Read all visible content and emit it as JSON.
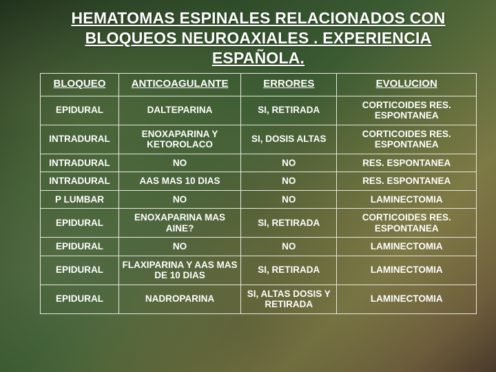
{
  "title": "HEMATOMAS ESPINALES RELACIONADOS CON BLOQUEOS NEUROAXIALES .  EXPERIENCIA ESPAÑOLA.",
  "table": {
    "columns": [
      "BLOQUEO",
      "ANTICOAGULANTE",
      "ERRORES",
      "EVOLUCION"
    ],
    "column_widths_pct": [
      18,
      28,
      22,
      32
    ],
    "header_fontsize": 15,
    "cell_fontsize": 13.5,
    "border_color": "#e8e8e0",
    "text_color": "#ffffff",
    "rows": [
      [
        "EPIDURAL",
        "DALTEPARINA",
        "SI, RETIRADA",
        "CORTICOIDES RES. ESPONTANEA"
      ],
      [
        "INTRADURAL",
        "ENOXAPARINA Y KETOROLACO",
        "SI, DOSIS ALTAS",
        "CORTICOIDES RES. ESPONTANEA"
      ],
      [
        "INTRADURAL",
        "NO",
        "NO",
        "RES. ESPONTANEA"
      ],
      [
        "INTRADURAL",
        "AAS MAS 10 DIAS",
        "NO",
        "RES. ESPONTANEA"
      ],
      [
        "P LUMBAR",
        "NO",
        "NO",
        "LAMINECTOMIA"
      ],
      [
        "EPIDURAL",
        "ENOXAPARINA MAS AINE?",
        "SI, RETIRADA",
        "CORTICOIDES RES. ESPONTANEA"
      ],
      [
        "EPIDURAL",
        "NO",
        "NO",
        "LAMINECTOMIA"
      ],
      [
        "EPIDURAL",
        "FLAXIPARINA Y AAS MAS DE 10 DIAS",
        "SI, RETIRADA",
        "LAMINECTOMIA"
      ],
      [
        "EPIDURAL",
        "NADROPARINA",
        "SI, ALTAS DOSIS Y RETIRADA",
        "LAMINECTOMIA"
      ]
    ]
  },
  "background": {
    "gradient_stops": [
      "#1a2a18",
      "#2d4a28",
      "#3a5a32",
      "#5a6a3a",
      "#7a7a45",
      "#6a5a3a",
      "#4a3a2a"
    ]
  }
}
